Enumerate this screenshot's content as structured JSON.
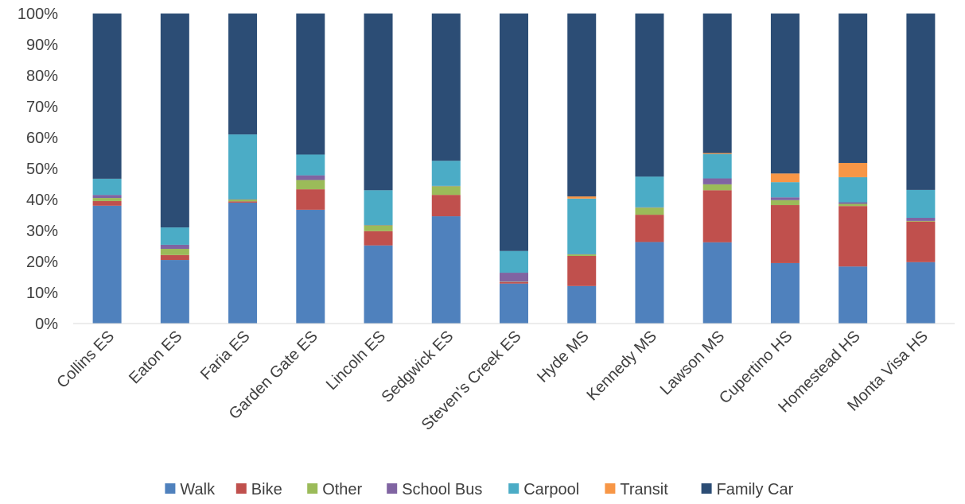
{
  "chart_data": {
    "type": "bar",
    "stacked": true,
    "percent": true,
    "title": "",
    "xlabel": "",
    "ylabel": "",
    "ylim": [
      0,
      100
    ],
    "yticks": [
      "0%",
      "10%",
      "20%",
      "30%",
      "40%",
      "50%",
      "60%",
      "70%",
      "80%",
      "90%",
      "100%"
    ],
    "grid": false,
    "legend_position": "bottom",
    "categories": [
      "Collins ES",
      "Eaton ES",
      "Faria ES",
      "Garden Gate ES",
      "Lincoln ES",
      "Sedgwick ES",
      "Steven's Creek ES",
      "Hyde MS",
      "Kennedy MS",
      "Lawson MS",
      "Cupertino HS",
      "Homestead HS",
      "Monta Visa HS"
    ],
    "series": [
      {
        "name": "Walk",
        "color": "#4F81BD",
        "values": [
          38,
          20.5,
          39,
          36.7,
          25.2,
          34.6,
          12.9,
          12.1,
          26.3,
          26.2,
          19.5,
          18.4,
          19.8
        ]
      },
      {
        "name": "Bike",
        "color": "#C0504D",
        "values": [
          1.5,
          1.6,
          0.4,
          6.6,
          4.6,
          6.9,
          0.5,
          9.7,
          8.8,
          16.8,
          18.7,
          19.5,
          13.1
        ]
      },
      {
        "name": "Other",
        "color": "#9BBB59",
        "values": [
          1,
          2,
          0.6,
          3,
          1.9,
          2.8,
          0.1,
          0.5,
          2.3,
          1.9,
          1.6,
          0.7,
          0.2
        ]
      },
      {
        "name": "School Bus",
        "color": "#8064A2",
        "values": [
          1,
          1.3,
          0.1,
          1.5,
          0.1,
          0.1,
          2.9,
          0.1,
          0.1,
          1.9,
          0.9,
          0.5,
          1
        ]
      },
      {
        "name": "Carpool",
        "color": "#4BACC6",
        "values": [
          5.2,
          5.6,
          20.9,
          6.7,
          11.2,
          8.1,
          7,
          17.9,
          9.9,
          7.9,
          4.9,
          8.1,
          9
        ]
      },
      {
        "name": "Transit",
        "color": "#F79646",
        "values": [
          0,
          0,
          0,
          0,
          0,
          0,
          0,
          0.7,
          0,
          0.3,
          2.8,
          4.6,
          0
        ]
      },
      {
        "name": "Family Car",
        "color": "#2C4D75",
        "values": [
          53.3,
          69,
          39,
          45.5,
          57,
          47.5,
          76.6,
          59,
          52.6,
          45,
          51.6,
          48.2,
          56.9
        ]
      }
    ]
  }
}
